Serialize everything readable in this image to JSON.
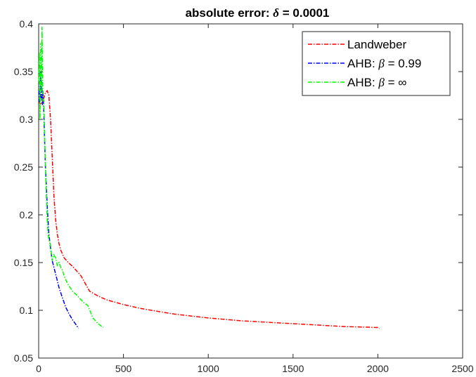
{
  "chart_data": {
    "type": "line",
    "title_prefix": "absolute error: ",
    "title_symbol": "δ",
    "title_suffix": " = 0.0001",
    "xlim": [
      0,
      2500
    ],
    "ylim": [
      0.05,
      0.4
    ],
    "xticks": [
      0,
      500,
      1000,
      1500,
      2000,
      2500
    ],
    "yticks": [
      0.05,
      0.1,
      0.15,
      0.2,
      0.25,
      0.3,
      0.35,
      0.4
    ],
    "xtick_labels": [
      "0",
      "500",
      "1000",
      "1500",
      "2000",
      "2500"
    ],
    "ytick_labels": [
      "0.05",
      "0.1",
      "0.15",
      "0.2",
      "0.25",
      "0.3",
      "0.35",
      "0.4"
    ],
    "grid": false,
    "legend_position": "top-right",
    "series": [
      {
        "name": "Landweber",
        "legend_prefix": "Landweber",
        "legend_symbol": "",
        "legend_suffix": "",
        "color": "#ff0000",
        "x": [
          1,
          10,
          20,
          30,
          40,
          50,
          60,
          70,
          80,
          90,
          100,
          110,
          120,
          130,
          150,
          175,
          200,
          225,
          250,
          275,
          300,
          350,
          400,
          500,
          600,
          700,
          800,
          1000,
          1200,
          1400,
          1600,
          1800,
          2000,
          2010
        ],
        "y": [
          0.318,
          0.316,
          0.318,
          0.322,
          0.328,
          0.33,
          0.325,
          0.3,
          0.26,
          0.22,
          0.195,
          0.18,
          0.17,
          0.163,
          0.155,
          0.15,
          0.146,
          0.141,
          0.136,
          0.128,
          0.12,
          0.115,
          0.111,
          0.106,
          0.102,
          0.099,
          0.096,
          0.092,
          0.089,
          0.087,
          0.085,
          0.083,
          0.082,
          0.081
        ]
      },
      {
        "name": "AHB: β = 0.99",
        "legend_prefix": "AHB: ",
        "legend_symbol": "β",
        "legend_suffix": " = 0.99",
        "color": "#0000ff",
        "x": [
          1,
          5,
          8,
          12,
          15,
          18,
          22,
          25,
          30,
          35,
          40,
          45,
          50,
          55,
          60,
          70,
          80,
          90,
          100,
          110,
          120,
          140,
          160,
          180,
          200,
          220,
          235
        ],
        "y": [
          0.33,
          0.318,
          0.32,
          0.35,
          0.32,
          0.34,
          0.315,
          0.33,
          0.31,
          0.28,
          0.25,
          0.23,
          0.21,
          0.195,
          0.18,
          0.165,
          0.152,
          0.145,
          0.138,
          0.131,
          0.124,
          0.113,
          0.103,
          0.096,
          0.09,
          0.085,
          0.081
        ]
      },
      {
        "name": "AHB: β = ∞",
        "legend_prefix": "AHB: ",
        "legend_symbol": "β",
        "legend_suffix": " = ∞",
        "color": "#00ff00",
        "x": [
          1,
          4,
          8,
          12,
          16,
          20,
          25,
          30,
          35,
          40,
          45,
          50,
          55,
          60,
          70,
          80,
          90,
          100,
          110,
          120,
          130,
          140,
          150,
          170,
          200,
          230,
          260,
          290,
          320,
          350,
          380
        ],
        "y": [
          0.34,
          0.37,
          0.3,
          0.38,
          0.33,
          0.397,
          0.32,
          0.32,
          0.29,
          0.25,
          0.22,
          0.195,
          0.18,
          0.174,
          0.168,
          0.152,
          0.158,
          0.155,
          0.147,
          0.15,
          0.145,
          0.142,
          0.136,
          0.128,
          0.12,
          0.115,
          0.109,
          0.105,
          0.092,
          0.086,
          0.082
        ]
      }
    ]
  }
}
